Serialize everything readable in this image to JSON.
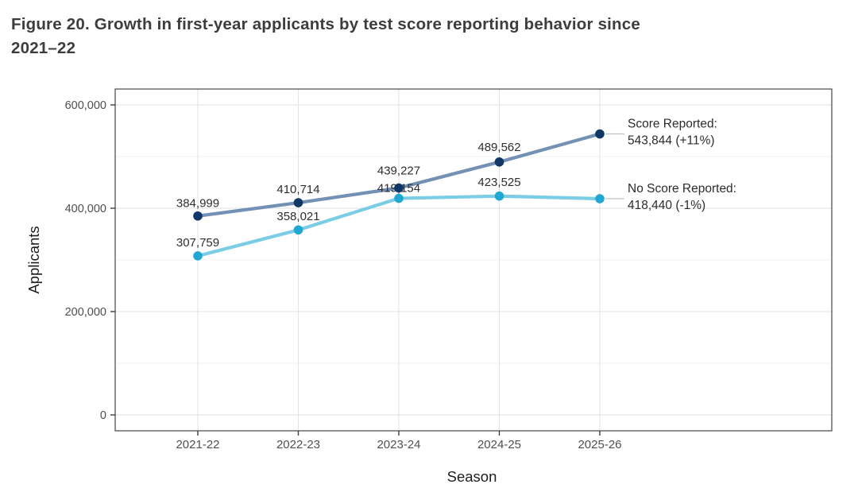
{
  "figure": {
    "title_line1": "Figure 20. Growth in first-year applicants by test score reporting behavior since",
    "title_line2": "2021–22"
  },
  "chart_data": {
    "type": "line",
    "title": "Figure 20. Growth in first-year applicants by test score reporting behavior since 2021–22",
    "xlabel": "Season",
    "ylabel": "Applicants",
    "categories": [
      "2021-22",
      "2022-23",
      "2023-24",
      "2024-25",
      "2025-26"
    ],
    "ylim": [
      0,
      600000
    ],
    "y_major_ticks": [
      0,
      200000,
      400000,
      600000
    ],
    "y_tick_labels": [
      "0",
      "200,000",
      "400,000",
      "600,000"
    ],
    "y_minor_ticks": [
      100000,
      300000,
      500000
    ],
    "grid": "horizontal major + minor gridlines, vertical gridlines at each season",
    "legend_position": "annotations at right edge with gray leader lines",
    "series": [
      {
        "name": "Score Reported",
        "line_color": "#7291b4",
        "point_color": "#0f3866",
        "values": [
          384999,
          410714,
          439227,
          489562,
          543844
        ],
        "point_labels": [
          "384,999",
          "410,714",
          "439,227",
          "489,562",
          null
        ],
        "label_dy": [
          -16.5,
          -17,
          -22,
          -19,
          0
        ],
        "annotation_line1": "Score Reported:",
        "annotation_line2": "543,844 (+11%)"
      },
      {
        "name": "No Score Reported",
        "line_color": "#7bcde6",
        "point_color": "#22a7d2",
        "values": [
          307759,
          358021,
          419154,
          423525,
          418440
        ],
        "point_labels": [
          "307,759",
          "358,021",
          "419,154",
          "423,525",
          null
        ],
        "label_dy": [
          -17,
          -17.5,
          -13,
          -17.5,
          0
        ],
        "annotation_line1": "No Score Reported:",
        "annotation_line2": "418,440 (-1%)"
      }
    ]
  }
}
